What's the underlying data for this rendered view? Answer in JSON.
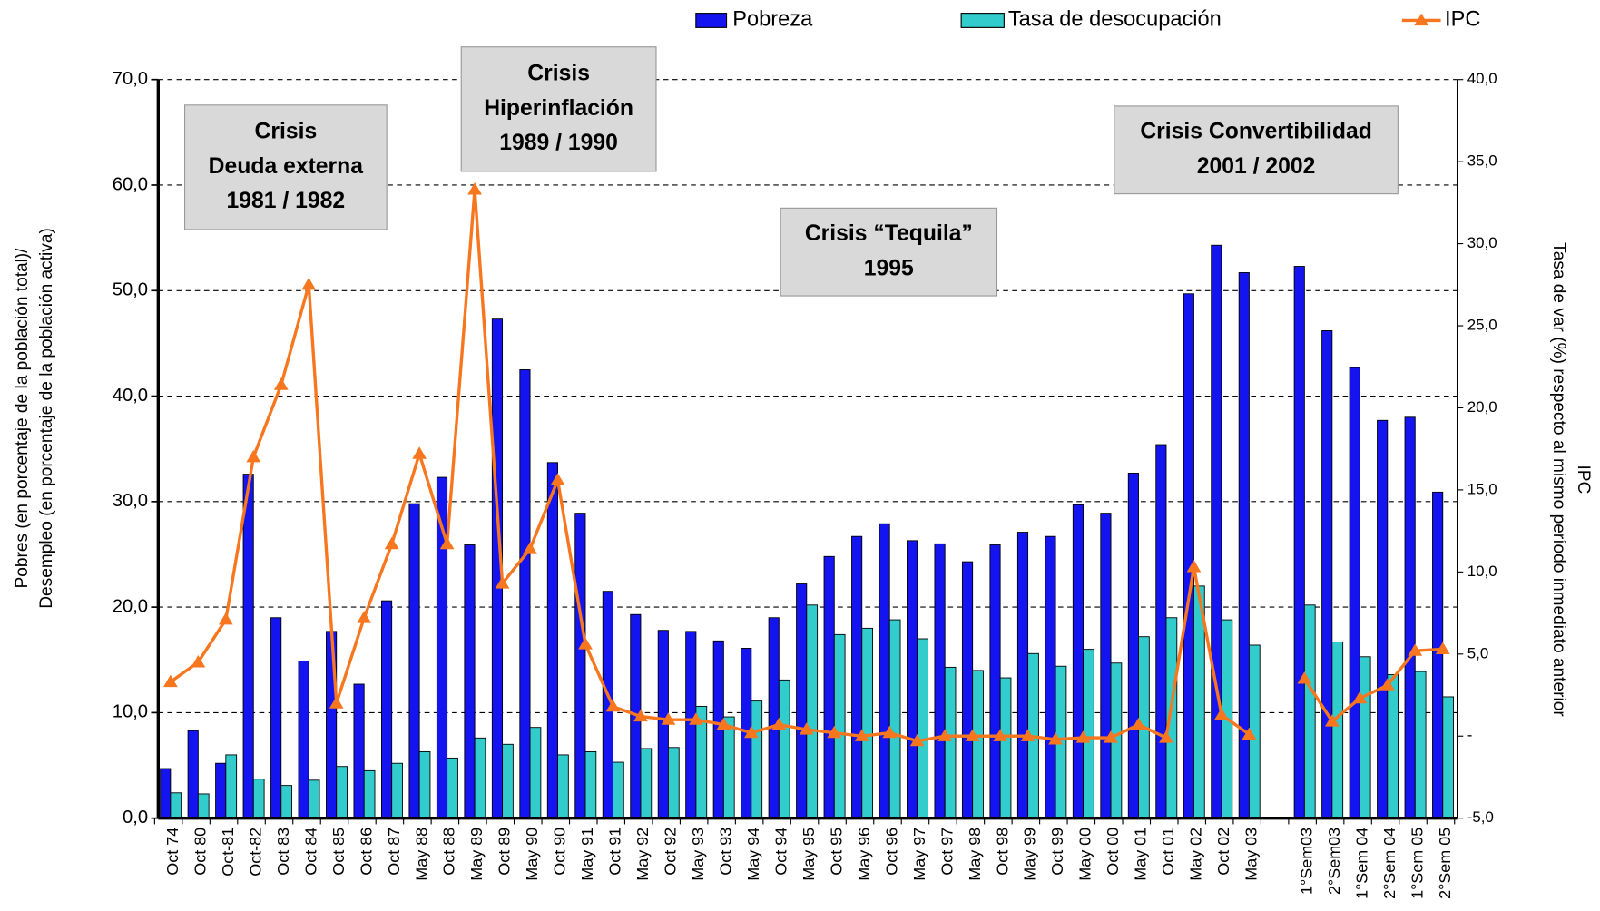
{
  "chart_data": {
    "type": "bar",
    "categories": [
      "Oct 74",
      "Oct 80",
      "Oct-81",
      "Oct-82",
      "Oct 83",
      "Oct 84",
      "Oct 85",
      "Oct 86",
      "Oct 87",
      "May 88",
      "Oct 88",
      "May 89",
      "Oct 89",
      "May 90",
      "Oct 90",
      "May 91",
      "Oct 91",
      "May 92",
      "Oct 92",
      "May 93",
      "Oct 93",
      "May 94",
      "Oct 94",
      "May 95",
      "Oct 95",
      "May 96",
      "Oct 96",
      "May 97",
      "Oct 97",
      "May 98",
      "Oct 98",
      "May 99",
      "Oct 99",
      "May 00",
      "Oct 00",
      "May 01",
      "Oct 01",
      "May 02",
      "Oct 02",
      "May 03",
      null,
      "1°Sem03",
      "2°Sem03",
      "1°Sem 04",
      "2°Sem 04",
      "1°Sem 05",
      "2°Sem 05"
    ],
    "series": [
      {
        "name": "Pobreza",
        "type": "bar",
        "color": "#1414f0",
        "values": [
          4.7,
          8.3,
          5.2,
          32.6,
          19.0,
          14.9,
          17.7,
          12.7,
          20.6,
          29.8,
          32.3,
          25.9,
          47.3,
          42.5,
          33.7,
          28.9,
          21.5,
          19.3,
          17.8,
          17.7,
          16.8,
          16.1,
          19.0,
          22.2,
          24.8,
          26.7,
          27.9,
          26.3,
          26.0,
          24.3,
          25.9,
          27.1,
          26.7,
          29.7,
          28.9,
          32.7,
          35.4,
          49.7,
          54.3,
          51.7,
          null,
          52.3,
          46.2,
          42.7,
          37.7,
          38.0,
          30.9
        ]
      },
      {
        "name": "Tasa de desocupación",
        "type": "bar",
        "color": "#33cccc",
        "values": [
          2.4,
          2.3,
          6.0,
          3.7,
          3.1,
          3.6,
          4.9,
          4.5,
          5.2,
          6.3,
          5.7,
          7.6,
          7.0,
          8.6,
          6.0,
          6.3,
          5.3,
          6.6,
          6.7,
          10.6,
          9.6,
          11.1,
          13.1,
          20.2,
          17.4,
          18.0,
          18.8,
          17.0,
          14.3,
          14.0,
          13.3,
          15.6,
          14.4,
          16.0,
          14.7,
          17.2,
          19.0,
          22.0,
          18.8,
          16.4,
          null,
          20.2,
          16.7,
          15.3,
          13.6,
          13.9,
          11.5
        ]
      },
      {
        "name": "IPC",
        "type": "line",
        "axis": "y2",
        "color": "#f7761e",
        "values": [
          3.3,
          4.5,
          7.1,
          17.0,
          21.4,
          27.5,
          2.0,
          7.2,
          11.7,
          17.2,
          11.7,
          33.3,
          9.3,
          11.4,
          15.6,
          5.6,
          1.8,
          1.2,
          1.0,
          1.0,
          0.7,
          0.2,
          0.7,
          0.4,
          0.2,
          0.0,
          0.2,
          -0.3,
          0.0,
          0.0,
          0.0,
          0.0,
          -0.2,
          -0.1,
          -0.1,
          0.7,
          -0.1,
          10.3,
          1.3,
          0.1,
          null,
          3.5,
          0.9,
          2.3,
          3.1,
          5.2,
          5.3
        ]
      }
    ],
    "ylabel": [
      "Pobres (en porcentaje de la población total)/",
      "Desempleo (en porcentaje de la población activa)"
    ],
    "y2label": [
      "IPC",
      "Tasa de var (%) respecto al mismo período inmediato anterior"
    ],
    "ylim": [
      0,
      70
    ],
    "yticks": [
      {
        "value": 0,
        "label": "0,0"
      },
      {
        "value": 10,
        "label": "10,0"
      },
      {
        "value": 20,
        "label": "20,0"
      },
      {
        "value": 30,
        "label": "30,0"
      },
      {
        "value": 40,
        "label": "40,0"
      },
      {
        "value": 50,
        "label": "50,0"
      },
      {
        "value": 60,
        "label": "60,0"
      },
      {
        "value": 70,
        "label": "70,0"
      }
    ],
    "y2lim": [
      -5,
      40
    ],
    "y2ticks": [
      {
        "value": -5,
        "label": "-5,0"
      },
      {
        "value": 0,
        "label": "-"
      },
      {
        "value": 5,
        "label": "5,0"
      },
      {
        "value": 10,
        "label": "10,0"
      },
      {
        "value": 15,
        "label": "15,0"
      },
      {
        "value": 20,
        "label": "20,0"
      },
      {
        "value": 25,
        "label": "25,0"
      },
      {
        "value": 30,
        "label": "30,0"
      },
      {
        "value": 35,
        "label": "35,0"
      },
      {
        "value": 40,
        "label": "40,0"
      }
    ],
    "grid": true,
    "legend": "top",
    "annotations": [
      [
        "Crisis",
        "Deuda externa",
        "1981 / 1982"
      ],
      [
        "Crisis",
        "Hiperinflación",
        "1989 / 1990"
      ],
      [
        "Crisis “Tequila”",
        "1995"
      ],
      [
        "Crisis Convertibilidad",
        "2001 / 2002"
      ]
    ]
  }
}
